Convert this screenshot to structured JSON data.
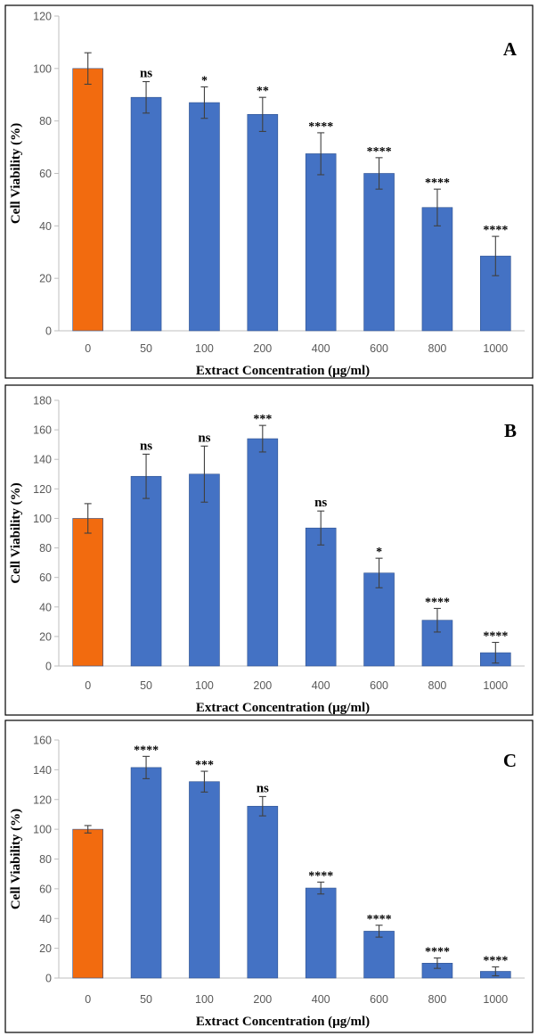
{
  "chart_data": [
    {
      "type": "bar",
      "panel_label": "A",
      "categories": [
        "0",
        "50",
        "100",
        "200",
        "400",
        "600",
        "800",
        "1000"
      ],
      "values": [
        100,
        89,
        87,
        82.5,
        67.5,
        60,
        47,
        28.5
      ],
      "errors": [
        6,
        6,
        6,
        6.5,
        8,
        6,
        7,
        7.5
      ],
      "significance": [
        "",
        "ns",
        "*",
        "**",
        "****",
        "****",
        "****",
        "****"
      ],
      "bar_colors": [
        "#F26B0F",
        "#4472C4",
        "#4472C4",
        "#4472C4",
        "#4472C4",
        "#4472C4",
        "#4472C4",
        "#4472C4"
      ],
      "xlabel": "Extract Concentration (µg/ml)",
      "ylabel": "Cell Viability (%)",
      "ylim": [
        0,
        120
      ],
      "yticks": [
        0,
        20,
        40,
        60,
        80,
        100,
        120
      ],
      "grid": false,
      "frame": true
    },
    {
      "type": "bar",
      "panel_label": "B",
      "categories": [
        "0",
        "50",
        "100",
        "200",
        "400",
        "600",
        "800",
        "1000"
      ],
      "values": [
        100,
        128.5,
        130,
        154,
        93.5,
        63,
        31,
        9
      ],
      "errors": [
        10,
        15,
        19,
        9,
        11.5,
        10,
        8,
        7
      ],
      "significance": [
        "",
        "ns",
        "ns",
        "***",
        "ns",
        "*",
        "****",
        "****"
      ],
      "bar_colors": [
        "#F26B0F",
        "#4472C4",
        "#4472C4",
        "#4472C4",
        "#4472C4",
        "#4472C4",
        "#4472C4",
        "#4472C4"
      ],
      "xlabel": "Extract Concentration (µg/ml)",
      "ylabel": "Cell Viability (%)",
      "ylim": [
        0,
        180
      ],
      "yticks": [
        0,
        20,
        40,
        60,
        80,
        100,
        120,
        140,
        160,
        180
      ],
      "grid": false,
      "frame": true
    },
    {
      "type": "bar",
      "panel_label": "C",
      "categories": [
        "0",
        "50",
        "100",
        "200",
        "400",
        "600",
        "800",
        "1000"
      ],
      "values": [
        100,
        141.5,
        132,
        115.5,
        60.5,
        31.5,
        10,
        4.5
      ],
      "errors": [
        2.5,
        7.5,
        7,
        6.5,
        4,
        4,
        3.5,
        3
      ],
      "significance": [
        "",
        "****",
        "***",
        "ns",
        "****",
        "****",
        "****",
        "****"
      ],
      "bar_colors": [
        "#F26B0F",
        "#4472C4",
        "#4472C4",
        "#4472C4",
        "#4472C4",
        "#4472C4",
        "#4472C4",
        "#4472C4"
      ],
      "xlabel": "Extract Concentration (µg/ml)",
      "ylabel": "Cell Viability (%)",
      "ylim": [
        0,
        160
      ],
      "yticks": [
        0,
        20,
        40,
        60,
        80,
        100,
        120,
        140,
        160
      ],
      "grid": false,
      "frame": true
    }
  ],
  "colors": {
    "control_bar": "#F26B0F",
    "treatment_bar": "#4472C4",
    "bar_outline": "#2F528F",
    "axis_line": "#BFBFBF",
    "frame_line": "#000000",
    "error_bar": "#404040"
  }
}
